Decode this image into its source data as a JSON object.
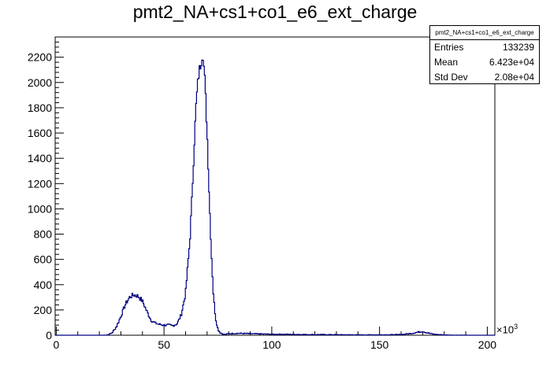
{
  "chart_data": {
    "type": "histogram",
    "title": "pmt2_NA+cs1+co1_e6_ext_charge",
    "xlabel": "",
    "ylabel": "",
    "xlim": [
      -0.5,
      203.5
    ],
    "ylim": [
      0,
      2360
    ],
    "x_multiplier": "×10",
    "x_multiplier_exp": "3",
    "x_ticks": [
      0,
      50,
      100,
      150,
      200
    ],
    "y_ticks": [
      0,
      200,
      400,
      600,
      800,
      1000,
      1200,
      1400,
      1600,
      1800,
      2000,
      2200
    ],
    "line_color": "#000080",
    "series": [
      {
        "x": [
          20,
          22,
          24,
          26,
          28,
          30,
          32,
          34,
          36,
          38,
          40,
          42,
          44,
          46,
          48,
          50,
          52,
          54,
          56,
          58,
          60,
          62,
          63,
          64,
          65,
          66,
          67,
          68,
          69,
          70,
          71,
          72,
          73,
          74,
          75,
          76,
          78,
          80,
          85,
          90,
          100,
          120,
          140,
          150,
          160,
          165,
          168,
          170,
          172,
          175,
          180,
          190,
          200
        ],
        "values": [
          0,
          0,
          3,
          20,
          70,
          150,
          240,
          300,
          320,
          310,
          270,
          190,
          120,
          95,
          85,
          80,
          80,
          75,
          90,
          160,
          330,
          750,
          1100,
          1500,
          1850,
          2050,
          2150,
          2250,
          2000,
          1600,
          1100,
          650,
          300,
          130,
          50,
          20,
          5,
          12,
          15,
          12,
          8,
          5,
          3,
          3,
          5,
          15,
          25,
          30,
          20,
          8,
          2,
          0,
          0
        ]
      }
    ]
  },
  "stats": {
    "title": "pmt2_NA+cs1+co1_e6_ext_charge",
    "rows": [
      {
        "label": "Entries",
        "value": "133239"
      },
      {
        "label": "Mean",
        "value": "6.423e+04"
      },
      {
        "label": "Std Dev",
        "value": "2.08e+04"
      }
    ]
  }
}
